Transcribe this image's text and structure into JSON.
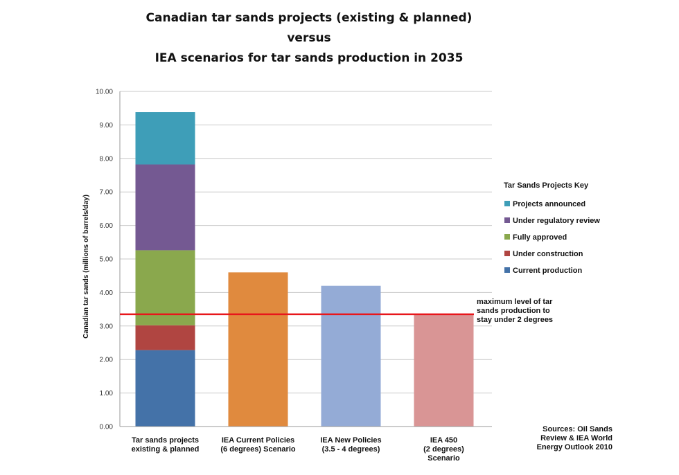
{
  "chart_data": {
    "type": "bar",
    "stacked": true,
    "title_lines": [
      "Canadian tar sands projects (existing & planned)",
      "versus",
      "IEA scenarios for tar sands production in 2035"
    ],
    "xlabel": "",
    "ylabel": "Canadian tar sands (millions of barrels/day)",
    "ylim": [
      0,
      10
    ],
    "yticks": [
      "0.00",
      "1.00",
      "2.00",
      "3.00",
      "4.00",
      "5.00",
      "6.00",
      "7.00",
      "8.00",
      "9.00",
      "10.00"
    ],
    "grid": true,
    "categories": [
      [
        "Tar sands projects",
        "existing & planned"
      ],
      [
        "IEA Current Policies",
        "(6 degrees) Scenario"
      ],
      [
        "IEA New Policies",
        "(3.5 - 4 degrees)"
      ],
      [
        "IEA 450",
        "(2 degrees)",
        "Scenario"
      ]
    ],
    "stacked_bar": {
      "category_index": 0,
      "segments": [
        {
          "name": "Current production",
          "value": 2.28,
          "color": "#4472a8"
        },
        {
          "name": "Under construction",
          "value": 0.74,
          "color": "#b04541"
        },
        {
          "name": "Fully approved",
          "value": 2.24,
          "color": "#8aa84d"
        },
        {
          "name": "Under regulatory review",
          "value": 2.56,
          "color": "#745992"
        },
        {
          "name": "Projects announced",
          "value": 1.56,
          "color": "#3e9eb8"
        }
      ]
    },
    "scenario_bars": [
      {
        "category_index": 1,
        "value": 4.6,
        "color": "#e08a3e"
      },
      {
        "category_index": 2,
        "value": 4.2,
        "color": "#94abd6"
      },
      {
        "category_index": 3,
        "value": 3.35,
        "color": "#d99595"
      }
    ],
    "legend": {
      "title": "Tar Sands Projects Key",
      "placement": "right",
      "items": [
        {
          "label": "Projects announced",
          "color": "#3e9eb8"
        },
        {
          "label": "Under regulatory review",
          "color": "#745992"
        },
        {
          "label": "Fully approved",
          "color": "#8aa84d"
        },
        {
          "label": "Under construction",
          "color": "#b04541"
        },
        {
          "label": "Current production",
          "color": "#4472a8"
        }
      ]
    },
    "reference_line": {
      "value": 3.35,
      "color": "#e8161b",
      "label_lines": [
        "maximum level of tar",
        "sands production to",
        "stay under 2 degrees"
      ]
    },
    "source_lines": [
      "Sources: Oil Sands",
      "Review & IEA World",
      "Energy Outlook 2010"
    ]
  }
}
